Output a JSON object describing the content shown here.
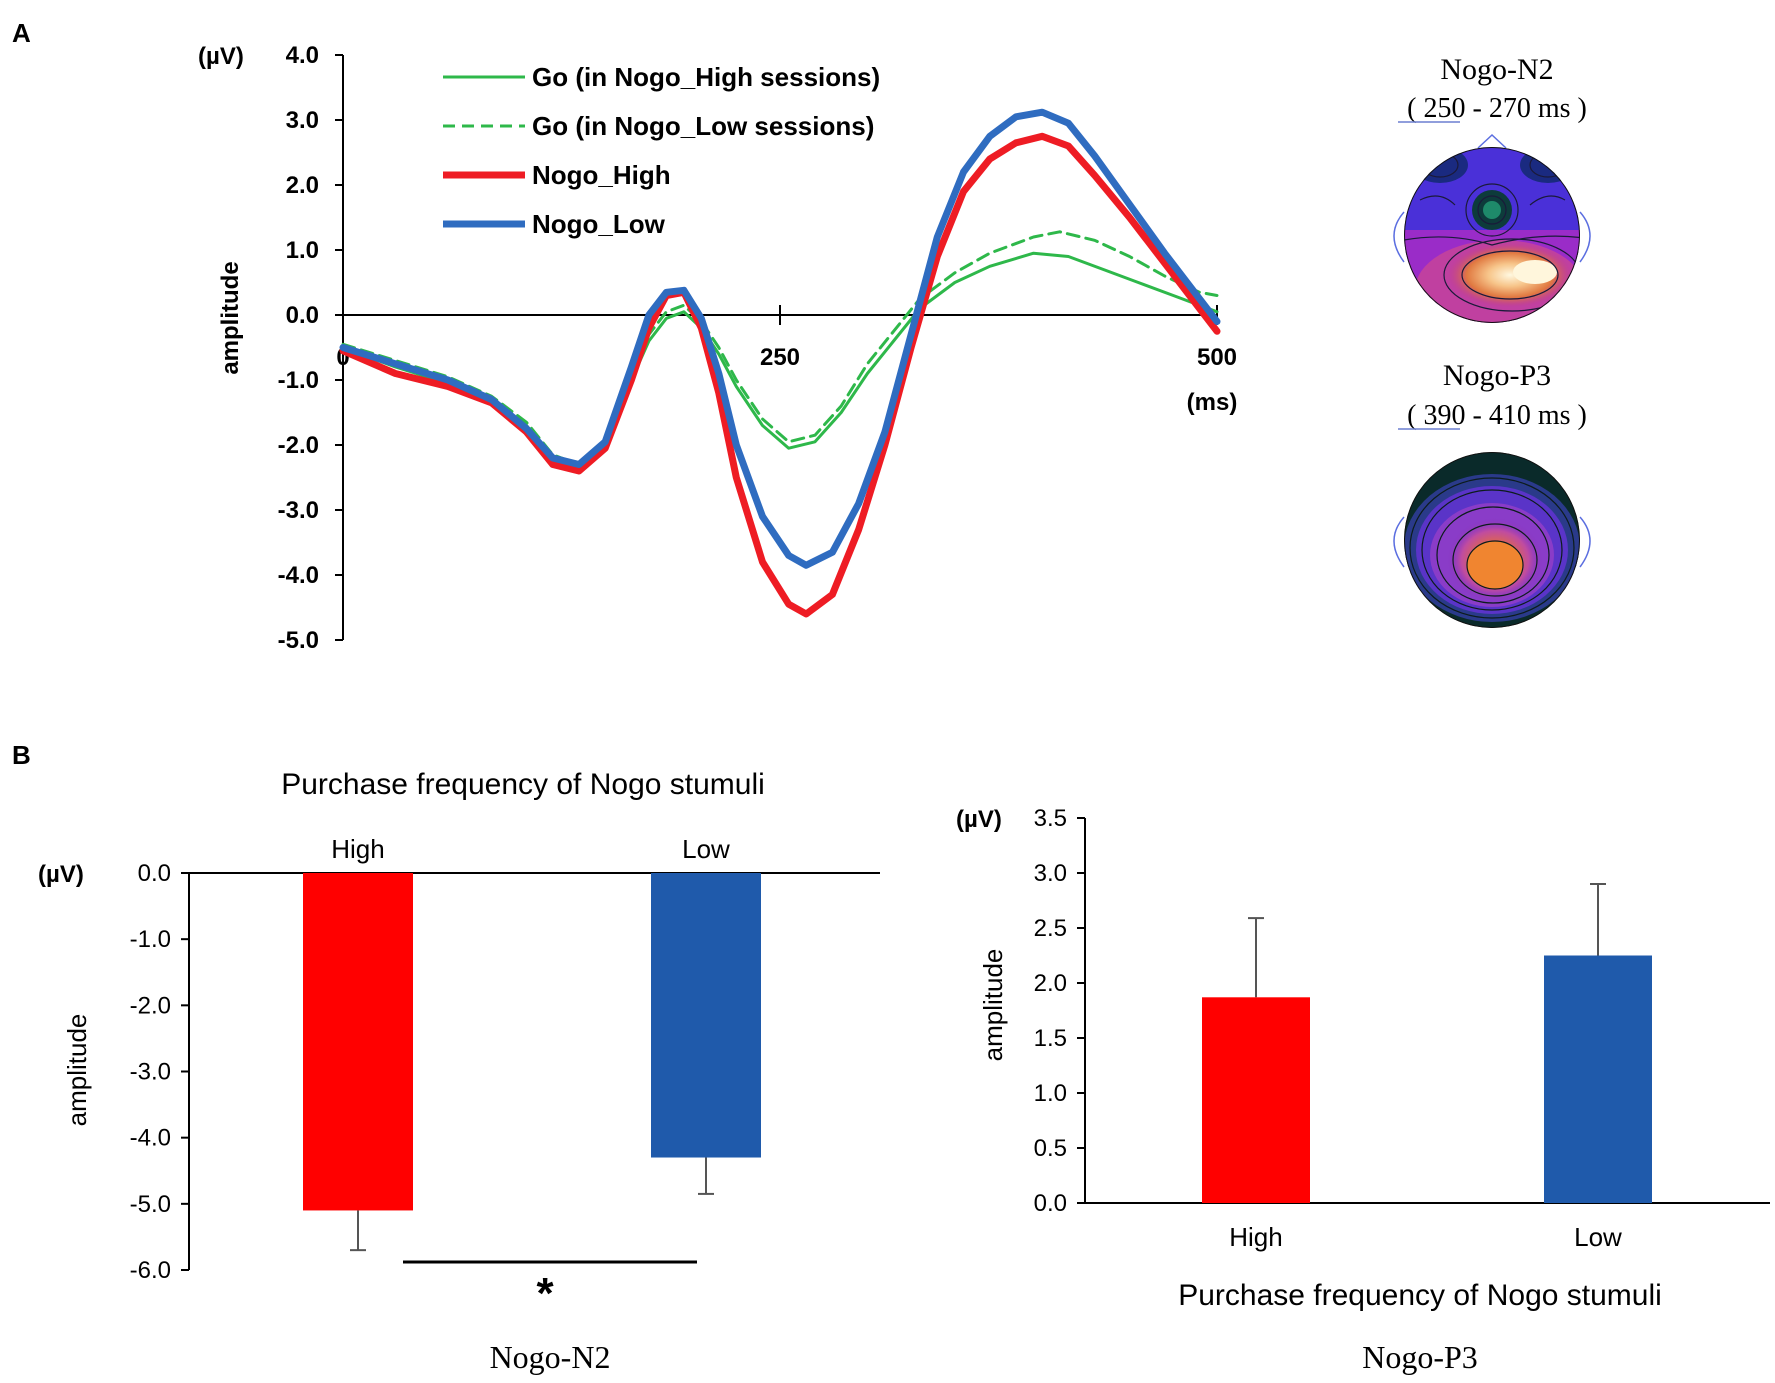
{
  "panel_labels": {
    "a": "A",
    "b": "B"
  },
  "colors": {
    "go": "#2eb84a",
    "nogo_high": "#ee1c24",
    "nogo_low": "#2f6cc0",
    "bar_high": "#ff0000",
    "bar_low": "#1f5aab",
    "axis": "#000000"
  },
  "chart_data": [
    {
      "id": "erp",
      "type": "line",
      "title": "",
      "unit_label": "(µV)",
      "ylabel": "amplitude",
      "xlabel": "(ms)",
      "xlim": [
        0,
        500
      ],
      "ylim": [
        -5.0,
        4.0
      ],
      "yticks": [
        "4.0",
        "3.0",
        "2.0",
        "1.0",
        "0.0",
        "-1.0",
        "-2.0",
        "-3.0",
        "-4.0",
        "-5.0"
      ],
      "xticks": [
        "0",
        "250",
        "500"
      ],
      "series": [
        {
          "name": "Go (in Nogo_High sessions)",
          "style": "solid-thin",
          "color": "#2eb84a",
          "points": [
            [
              0,
              -0.5
            ],
            [
              30,
              -0.8
            ],
            [
              60,
              -1.05
            ],
            [
              85,
              -1.3
            ],
            [
              105,
              -1.7
            ],
            [
              120,
              -2.2
            ],
            [
              135,
              -2.35
            ],
            [
              150,
              -2.0
            ],
            [
              165,
              -1.0
            ],
            [
              175,
              -0.4
            ],
            [
              185,
              -0.05
            ],
            [
              195,
              0.05
            ],
            [
              205,
              -0.2
            ],
            [
              215,
              -0.6
            ],
            [
              225,
              -1.1
            ],
            [
              240,
              -1.7
            ],
            [
              255,
              -2.05
            ],
            [
              270,
              -1.95
            ],
            [
              285,
              -1.5
            ],
            [
              300,
              -0.9
            ],
            [
              315,
              -0.4
            ],
            [
              330,
              0.1
            ],
            [
              350,
              0.5
            ],
            [
              370,
              0.75
            ],
            [
              395,
              0.95
            ],
            [
              415,
              0.9
            ],
            [
              435,
              0.7
            ],
            [
              455,
              0.5
            ],
            [
              475,
              0.3
            ],
            [
              500,
              0.05
            ]
          ]
        },
        {
          "name": "Go (in Nogo_Low sessions)",
          "style": "dashed",
          "color": "#2eb84a",
          "points": [
            [
              0,
              -0.45
            ],
            [
              30,
              -0.7
            ],
            [
              60,
              -0.95
            ],
            [
              85,
              -1.25
            ],
            [
              105,
              -1.65
            ],
            [
              120,
              -2.15
            ],
            [
              135,
              -2.3
            ],
            [
              150,
              -1.95
            ],
            [
              165,
              -0.9
            ],
            [
              175,
              -0.3
            ],
            [
              185,
              0.05
            ],
            [
              195,
              0.15
            ],
            [
              205,
              -0.1
            ],
            [
              215,
              -0.5
            ],
            [
              225,
              -1.0
            ],
            [
              240,
              -1.6
            ],
            [
              255,
              -1.95
            ],
            [
              270,
              -1.85
            ],
            [
              285,
              -1.4
            ],
            [
              300,
              -0.75
            ],
            [
              315,
              -0.25
            ],
            [
              330,
              0.25
            ],
            [
              350,
              0.65
            ],
            [
              370,
              0.95
            ],
            [
              395,
              1.2
            ],
            [
              410,
              1.28
            ],
            [
              430,
              1.15
            ],
            [
              450,
              0.9
            ],
            [
              470,
              0.6
            ],
            [
              490,
              0.35
            ],
            [
              500,
              0.3
            ]
          ]
        },
        {
          "name": "Nogo_High",
          "style": "solid-thick",
          "color": "#ee1c24",
          "points": [
            [
              0,
              -0.55
            ],
            [
              30,
              -0.9
            ],
            [
              60,
              -1.1
            ],
            [
              85,
              -1.35
            ],
            [
              105,
              -1.8
            ],
            [
              120,
              -2.3
            ],
            [
              135,
              -2.4
            ],
            [
              150,
              -2.05
            ],
            [
              165,
              -1.0
            ],
            [
              175,
              -0.2
            ],
            [
              185,
              0.3
            ],
            [
              195,
              0.35
            ],
            [
              205,
              -0.2
            ],
            [
              215,
              -1.2
            ],
            [
              225,
              -2.5
            ],
            [
              240,
              -3.8
            ],
            [
              255,
              -4.45
            ],
            [
              265,
              -4.6
            ],
            [
              280,
              -4.3
            ],
            [
              295,
              -3.3
            ],
            [
              310,
              -2.0
            ],
            [
              325,
              -0.5
            ],
            [
              340,
              0.9
            ],
            [
              355,
              1.9
            ],
            [
              370,
              2.4
            ],
            [
              385,
              2.65
            ],
            [
              400,
              2.75
            ],
            [
              415,
              2.6
            ],
            [
              430,
              2.15
            ],
            [
              450,
              1.5
            ],
            [
              470,
              0.8
            ],
            [
              490,
              0.1
            ],
            [
              500,
              -0.25
            ]
          ]
        },
        {
          "name": "Nogo_Low",
          "style": "solid-thick",
          "color": "#2f6cc0",
          "points": [
            [
              0,
              -0.5
            ],
            [
              30,
              -0.75
            ],
            [
              60,
              -1.0
            ],
            [
              85,
              -1.3
            ],
            [
              105,
              -1.75
            ],
            [
              120,
              -2.2
            ],
            [
              135,
              -2.3
            ],
            [
              150,
              -1.95
            ],
            [
              165,
              -0.8
            ],
            [
              175,
              0.0
            ],
            [
              185,
              0.35
            ],
            [
              195,
              0.38
            ],
            [
              205,
              -0.05
            ],
            [
              215,
              -0.9
            ],
            [
              225,
              -2.0
            ],
            [
              240,
              -3.1
            ],
            [
              255,
              -3.7
            ],
            [
              265,
              -3.85
            ],
            [
              280,
              -3.65
            ],
            [
              295,
              -2.9
            ],
            [
              310,
              -1.8
            ],
            [
              325,
              -0.3
            ],
            [
              340,
              1.2
            ],
            [
              355,
              2.2
            ],
            [
              370,
              2.75
            ],
            [
              385,
              3.05
            ],
            [
              400,
              3.12
            ],
            [
              415,
              2.95
            ],
            [
              430,
              2.45
            ],
            [
              450,
              1.7
            ],
            [
              470,
              0.95
            ],
            [
              490,
              0.25
            ],
            [
              500,
              -0.1
            ]
          ]
        }
      ]
    },
    {
      "id": "n2-bars",
      "type": "bar",
      "title": "Purchase frequency of Nogo stumuli",
      "caption": "Nogo-N2",
      "unit_label": "(µV)",
      "ylabel": "amplitude",
      "categories": [
        "High",
        "Low"
      ],
      "values": [
        -5.1,
        -4.3
      ],
      "errors": [
        0.6,
        0.55
      ],
      "ylim": [
        -6.0,
        0.0
      ],
      "yticks": [
        "0.0",
        "-1.0",
        "-2.0",
        "-3.0",
        "-4.0",
        "-5.0",
        "-6.0"
      ],
      "significance": "*"
    },
    {
      "id": "p3-bars",
      "type": "bar",
      "title": "",
      "xlabel": "Purchase frequency of Nogo stumuli",
      "caption": "Nogo-P3",
      "unit_label": "(µV)",
      "ylabel": "amplitude",
      "categories": [
        "High",
        "Low"
      ],
      "values": [
        1.87,
        2.25
      ],
      "errors": [
        0.72,
        0.65
      ],
      "ylim": [
        0.0,
        3.5
      ],
      "yticks": [
        "3.5",
        "3.0",
        "2.5",
        "2.0",
        "1.5",
        "1.0",
        "0.5",
        "0.0"
      ]
    }
  ],
  "topomaps": [
    {
      "title": "Nogo-N2",
      "window": "( 250 - 270 ms )"
    },
    {
      "title": "Nogo-P3",
      "window": "( 390 - 410 ms )"
    }
  ]
}
